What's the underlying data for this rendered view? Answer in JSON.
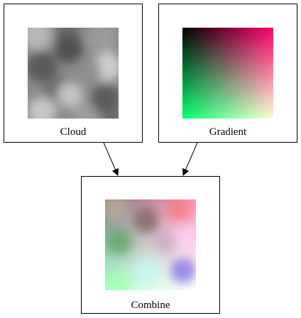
{
  "nodes": {
    "cloud": {
      "label": "Cloud",
      "texture": "cloud-noise-grayscale"
    },
    "gradient": {
      "label": "Gradient",
      "texture": "rgb-corner-gradient",
      "corner_colors": {
        "top_left": "#000000",
        "top_right": "#ff0000",
        "bottom_left": "#00ff00",
        "bottom_right": "#0000ff"
      }
    },
    "combine": {
      "label": "Combine",
      "texture": "cloud-plus-gradient"
    }
  },
  "edges": [
    {
      "from": "Cloud",
      "to": "Combine"
    },
    {
      "from": "Gradient",
      "to": "Combine"
    }
  ],
  "colors": {
    "border": "#000000",
    "background": "#ffffff"
  }
}
